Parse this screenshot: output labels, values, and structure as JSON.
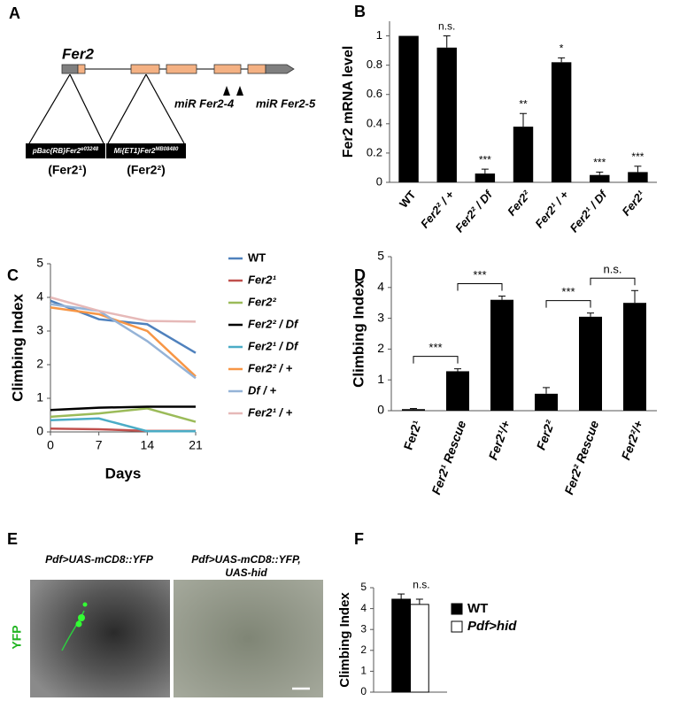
{
  "panel_labels": [
    "A",
    "B",
    "C",
    "D",
    "E",
    "F"
  ],
  "gene_diagram": {
    "gene": "Fer2",
    "insertions": [
      {
        "name": "pBac{RB}Fer2",
        "sup": "e03248",
        "allele": "(Fer2¹)"
      },
      {
        "name": "Mi{ET1}Fer2",
        "sup": "MB08480",
        "allele": "(Fer2²)"
      }
    ],
    "mirs": [
      "miR Fer2-4",
      "miR Fer2-5"
    ]
  },
  "microscopy": {
    "titles": [
      "Pdf>UAS-mCD8::YFP",
      "Pdf>UAS-mCD8::YFP,",
      "UAS-hid"
    ],
    "channel": "YFP"
  },
  "chart_data": [
    {
      "type": "bar",
      "ylabel": "Fer2 mRNA level",
      "categories": [
        "WT",
        "Fer2² / +",
        "Fer2² / Df",
        "Fer2²",
        "Fer2¹ / +",
        "Fer2¹ / Df",
        "Fer2¹"
      ],
      "values": [
        1,
        0.92,
        0.06,
        0.38,
        0.82,
        0.05,
        0.07
      ],
      "errors": [
        null,
        0.08,
        0.03,
        0.09,
        0.03,
        0.02,
        0.04
      ],
      "annotations": [
        null,
        "n.s.",
        "***",
        "**",
        "*",
        "***",
        "***"
      ],
      "color": "#000000",
      "ylim": [
        0,
        1.1
      ],
      "yticks": [
        0,
        0.2,
        0.4,
        0.6,
        0.8,
        1
      ]
    },
    {
      "type": "line",
      "xlabel": "Days",
      "ylabel": "Climbing Index",
      "x": [
        0,
        7,
        14,
        21
      ],
      "xlim": [
        0,
        21
      ],
      "xticks": [
        0,
        7,
        14,
        21
      ],
      "ylim": [
        0,
        5
      ],
      "yticks": [
        0,
        1,
        2,
        3,
        4,
        5
      ],
      "series": [
        {
          "name": "WT",
          "color": "#4f81bd",
          "values": [
            3.9,
            3.35,
            3.2,
            2.35
          ]
        },
        {
          "name": "Fer2¹",
          "color": "#c0504d",
          "values": [
            0.1,
            0.08,
            0.03,
            0.03
          ]
        },
        {
          "name": "Fer2²",
          "color": "#9bbb59",
          "values": [
            0.45,
            0.55,
            0.7,
            0.3
          ]
        },
        {
          "name": "Fer2² / Df",
          "color": "#000000",
          "values": [
            0.65,
            0.72,
            0.75,
            0.75
          ]
        },
        {
          "name": "Fer2¹ / Df",
          "color": "#4bacc6",
          "values": [
            0.35,
            0.4,
            0.02,
            0.02
          ]
        },
        {
          "name": "Fer2² / +",
          "color": "#f79646",
          "values": [
            3.7,
            3.5,
            3.0,
            1.65
          ]
        },
        {
          "name": "Df / +",
          "color": "#95b3d7",
          "values": [
            3.8,
            3.6,
            2.7,
            1.6
          ]
        },
        {
          "name": "Fer2¹ / +",
          "color": "#e6b9b8",
          "values": [
            4.0,
            3.6,
            3.3,
            3.28
          ]
        }
      ]
    },
    {
      "type": "bar",
      "ylabel": "Climbing Index",
      "categories": [
        "Fer2¹",
        "Fer2¹ Rescue",
        "Fer2¹/+",
        "Fer2²",
        "Fer2² Rescue",
        "Fer2²/+"
      ],
      "values": [
        0.05,
        1.28,
        3.6,
        0.55,
        3.05,
        3.5
      ],
      "errors": [
        0.02,
        0.08,
        0.12,
        0.2,
        0.12,
        0.4
      ],
      "brackets": [
        {
          "from": 0,
          "to": 1,
          "label": "***"
        },
        {
          "from": 1,
          "to": 2,
          "label": "***"
        },
        {
          "from": 3,
          "to": 4,
          "label": "***"
        },
        {
          "from": 4,
          "to": 5,
          "label": "n.s."
        }
      ],
      "color": "#000000",
      "ylim": [
        0,
        5
      ],
      "yticks": [
        0,
        1,
        2,
        3,
        4,
        5
      ]
    },
    {
      "type": "bar",
      "ylabel": "Climbing Index",
      "series": [
        {
          "name": "WT",
          "color": "#000000",
          "values": [
            4.45
          ],
          "errors": [
            0.25
          ]
        },
        {
          "name": "Pdf>hid",
          "color": "#ffffff",
          "values": [
            4.2
          ],
          "errors": [
            0.25
          ]
        }
      ],
      "annotations": [
        "n.s."
      ],
      "legend": "right",
      "ylim": [
        0,
        5
      ],
      "yticks": [
        0,
        1,
        2,
        3,
        4,
        5
      ]
    }
  ]
}
